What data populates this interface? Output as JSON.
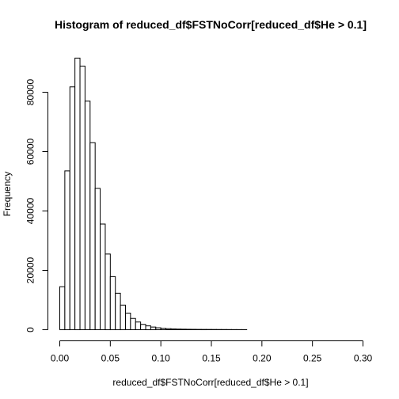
{
  "chart_data": {
    "type": "bar",
    "title": "Histogram of reduced_df$FSTNoCorr[reduced_df$He > 0.1]",
    "xlabel": "reduced_df$FSTNoCorr[reduced_df$He > 0.1]",
    "ylabel": "Frequency",
    "bin_width": 0.005,
    "bins_start": 0.0,
    "xlim": [
      0,
      0.3
    ],
    "ylim": [
      0,
      90000
    ],
    "x_ticks": [
      0.0,
      0.05,
      0.1,
      0.15,
      0.2,
      0.25,
      0.3
    ],
    "x_tick_labels": [
      "0.00",
      "0.05",
      "0.10",
      "0.15",
      "0.20",
      "0.25",
      "0.30"
    ],
    "y_ticks": [
      0,
      20000,
      40000,
      60000,
      80000
    ],
    "y_tick_labels": [
      "0",
      "20000",
      "40000",
      "60000",
      "80000"
    ],
    "values": [
      14500,
      53500,
      81800,
      91500,
      88800,
      77000,
      63000,
      47600,
      35600,
      25500,
      17900,
      12300,
      8300,
      5600,
      3800,
      2600,
      1800,
      1300,
      900,
      650,
      480,
      360,
      280,
      220,
      180,
      150,
      130,
      110,
      100,
      90,
      80,
      70,
      60,
      50,
      40,
      35,
      30
    ],
    "grid": false,
    "legend": "none"
  }
}
